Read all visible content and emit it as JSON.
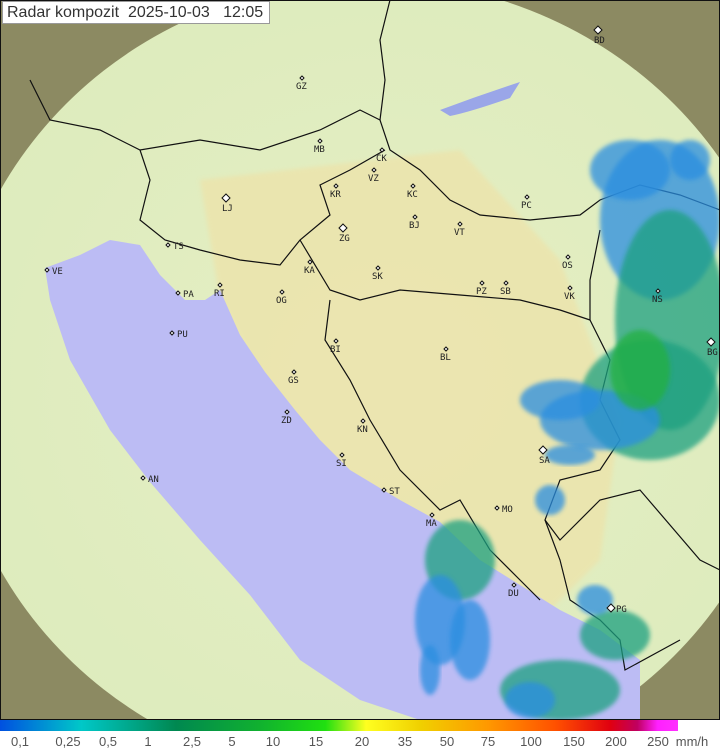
{
  "title": "Radar kompozit  2025-10-03   12:05",
  "legend": {
    "unit": "mm/h",
    "ticks": [
      "0,1",
      "0,25",
      "0,5",
      "1",
      "2,5",
      "5",
      "10",
      "15",
      "20",
      "35",
      "50",
      "75",
      "100",
      "150",
      "200",
      "250"
    ]
  },
  "colors": {
    "sea": "#bcbcf4",
    "land": "#e8e4b0",
    "coverage": "#dfeec0",
    "outside": "#8a8a60",
    "echo_dark": "#1aa080",
    "echo_light": "#2a7ee0"
  },
  "cities": [
    "GZ",
    "MB",
    "CK",
    "VZ",
    "KR",
    "KC",
    "PC",
    "LJ",
    "ZG",
    "BJ",
    "VT",
    "TS",
    "VE",
    "KA",
    "SK",
    "OS",
    "RI",
    "PA",
    "OG",
    "PZ",
    "SB",
    "VK",
    "NS",
    "PU",
    "BI",
    "BL",
    "BG",
    "GS",
    "ZD",
    "KN",
    "SI",
    "SA",
    "AN",
    "ST",
    "MO",
    "MA",
    "DU",
    "PG",
    "BD"
  ]
}
